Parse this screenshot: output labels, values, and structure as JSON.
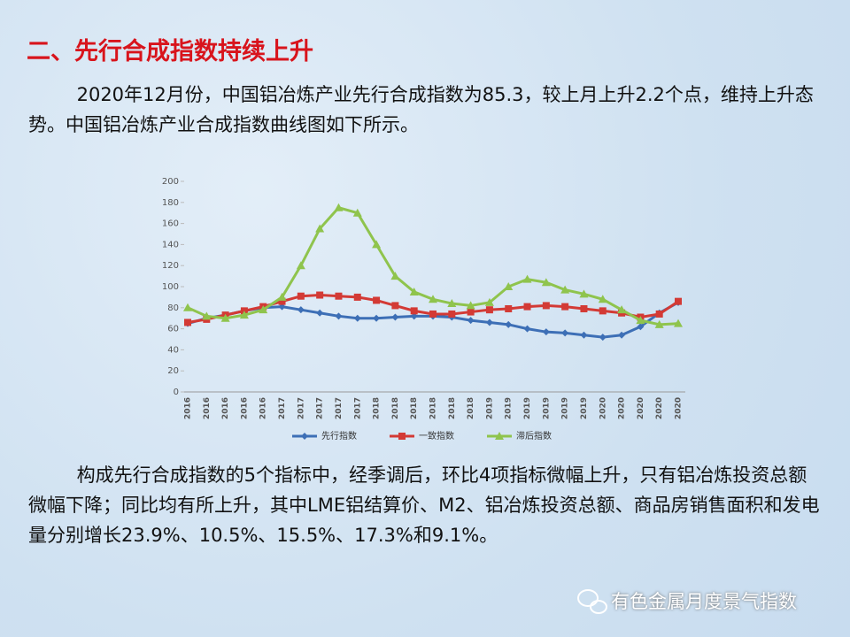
{
  "heading": "二、先行合成指数持续上升",
  "paragraphs": [
    "2020年12月份，中国铝冶炼产业先行合成指数为85.3，较上月上升2.2个点，维持上升态势。中国铝冶炼产业合成指数曲线图如下所示。",
    "构成先行合成指数的5个指标中，经季调后，环比4项指标微幅上升，只有铝冶炼投资总额微幅下降；同比均有所上升，其中LME铝结算价、M2、铝冶炼投资总额、商品房销售面积和发电量分别增长23.9%、10.5%、15.5%、17.3%和9.1%。"
  ],
  "footer": "有色金属月度景气指数",
  "chart_data": {
    "type": "line",
    "categories": [
      "2016",
      "2016",
      "2016",
      "2016",
      "2016",
      "2017",
      "2017",
      "2017",
      "2017",
      "2017",
      "2018",
      "2018",
      "2018",
      "2018",
      "2018",
      "2018",
      "2019",
      "2019",
      "2019",
      "2019",
      "2019",
      "2019",
      "2020",
      "2020",
      "2020",
      "2020",
      "2020"
    ],
    "series": [
      {
        "name": "先行指数",
        "color": "#3d6fb6",
        "marker": "diamond",
        "values": [
          65,
          70,
          73,
          77,
          80,
          81,
          78,
          75,
          72,
          70,
          70,
          71,
          72,
          72,
          71,
          68,
          66,
          64,
          60,
          57,
          56,
          54,
          52,
          54,
          62,
          75,
          85
        ]
      },
      {
        "name": "一致指数",
        "color": "#d33a35",
        "marker": "square",
        "values": [
          66,
          69,
          73,
          77,
          81,
          86,
          91,
          92,
          91,
          90,
          87,
          82,
          77,
          74,
          74,
          76,
          78,
          79,
          81,
          82,
          81,
          79,
          77,
          75,
          71,
          74,
          86
        ]
      },
      {
        "name": "滞后指数",
        "color": "#8fc44d",
        "marker": "triangle",
        "values": [
          80,
          72,
          70,
          73,
          78,
          90,
          120,
          155,
          175,
          170,
          140,
          110,
          95,
          88,
          84,
          82,
          85,
          100,
          107,
          104,
          97,
          93,
          88,
          78,
          68,
          64,
          65
        ]
      }
    ],
    "ylim": [
      0,
      200
    ],
    "yticks": [
      0,
      20,
      40,
      60,
      80,
      100,
      120,
      140,
      160,
      180,
      200
    ],
    "legend": "bottom"
  }
}
